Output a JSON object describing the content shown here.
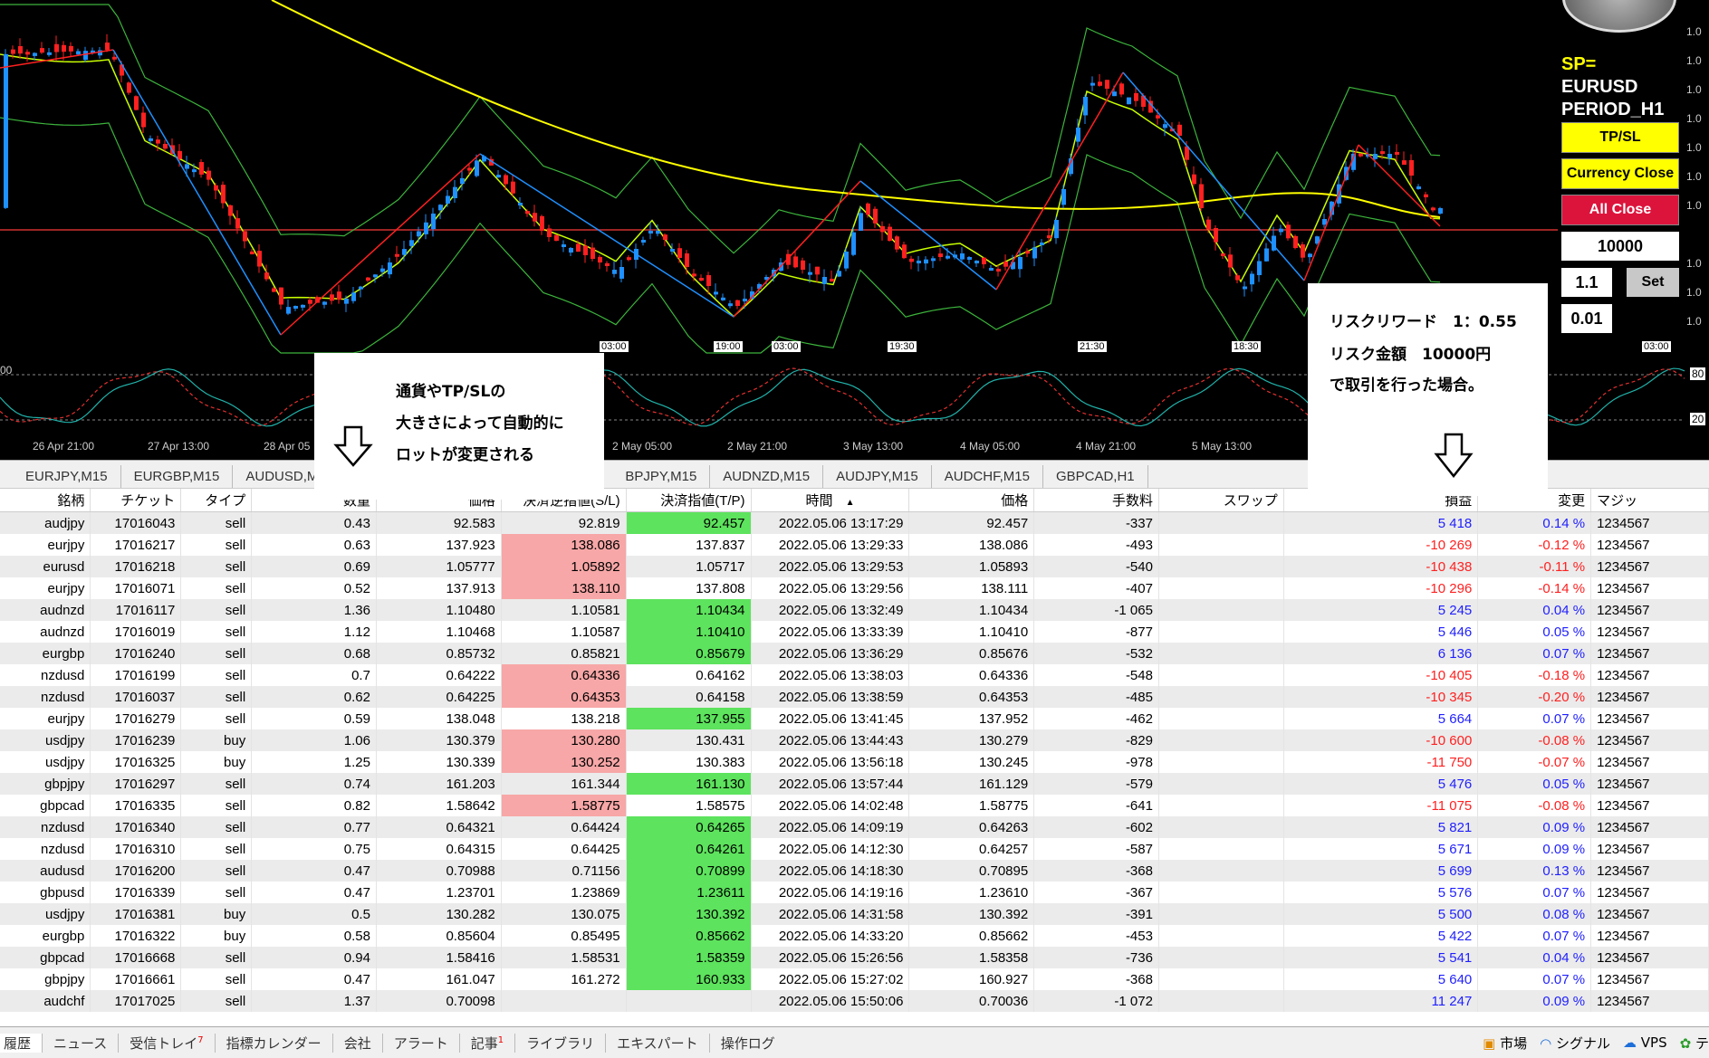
{
  "panel": {
    "sp_label": "SP=",
    "symbol": "EURUSD",
    "period": "PERIOD_H1",
    "tpsl_button": "TP/SL",
    "currency_close_button": "Currency Close",
    "all_close_button": "All Close",
    "amount_value": "10000",
    "ratio_value": "1.1",
    "set_button": "Set",
    "lot_value": "0.01"
  },
  "chart": {
    "time_axis": [
      "26 Apr 21:00",
      "27 Apr 13:00",
      "28 Apr 05",
      "2 May 05:00",
      "2 May 21:00",
      "3 May 13:00",
      "4 May 05:00",
      "4 May 21:00",
      "5 May 13:00"
    ],
    "time_tags": [
      "03:00",
      "19:00",
      "03:00",
      "19:30",
      "21:30",
      "18:30",
      "03:00"
    ],
    "price_axis_label": "1.0",
    "osc_levels": [
      "80",
      "20"
    ],
    "osc_left_label": "00"
  },
  "colors": {
    "bull": "#1e90ff",
    "bear": "#ff2020",
    "tp_green": "#5de35d",
    "sl_pink": "#f7a7a7",
    "positive": "#1f1fff",
    "negative": "#ff2020"
  },
  "notes": {
    "left": [
      "通貨やTP/SLの",
      "大きさによって自動的に",
      "ロットが変更される"
    ],
    "right": [
      "リスクリワード　1：0.55",
      "リスク金額　10000円",
      "で取引を行った場合。"
    ]
  },
  "icons": [
    "down-arrow-icon",
    "sort-arrow-icon",
    "market-icon",
    "signal-icon",
    "vps-icon"
  ],
  "tabs": [
    "EURJPY,M15",
    "EURGBP,M15",
    "AUDUSD,M",
    "BPJPY,M15",
    "AUDNZD,M15",
    "AUDJPY,M15",
    "AUDCHF,M15",
    "GBPCAD,H1"
  ],
  "table": {
    "headers": [
      "銘柄",
      "チケット",
      "タイプ",
      "数量",
      "価格",
      "決済逆指値(S/L)",
      "決済指値(T/P)",
      "時間",
      "価格",
      "手数料",
      "スワップ",
      "損益",
      "変更",
      "マジッ"
    ],
    "rows": [
      [
        "audjpy",
        "17016043",
        "sell",
        "0.43",
        "92.583",
        "92.819",
        "92.457",
        "2022.05.06 13:17:29",
        "92.457",
        "-337",
        "",
        "5 418",
        "0.14 %",
        "1234567",
        "tp"
      ],
      [
        "eurjpy",
        "17016217",
        "sell",
        "0.63",
        "137.923",
        "138.086",
        "137.837",
        "2022.05.06 13:29:33",
        "138.086",
        "-493",
        "",
        "-10 269",
        "-0.12 %",
        "1234567",
        "sl"
      ],
      [
        "eurusd",
        "17016218",
        "sell",
        "0.69",
        "1.05777",
        "1.05892",
        "1.05717",
        "2022.05.06 13:29:53",
        "1.05893",
        "-540",
        "",
        "-10 438",
        "-0.11 %",
        "1234567",
        "sl"
      ],
      [
        "eurjpy",
        "17016071",
        "sell",
        "0.52",
        "137.913",
        "138.110",
        "137.808",
        "2022.05.06 13:29:56",
        "138.111",
        "-407",
        "",
        "-10 296",
        "-0.14 %",
        "1234567",
        "sl"
      ],
      [
        "audnzd",
        "17016117",
        "sell",
        "1.36",
        "1.10480",
        "1.10581",
        "1.10434",
        "2022.05.06 13:32:49",
        "1.10434",
        "-1 065",
        "",
        "5 245",
        "0.04 %",
        "1234567",
        "tp"
      ],
      [
        "audnzd",
        "17016019",
        "sell",
        "1.12",
        "1.10468",
        "1.10587",
        "1.10410",
        "2022.05.06 13:33:39",
        "1.10410",
        "-877",
        "",
        "5 446",
        "0.05 %",
        "1234567",
        "tp"
      ],
      [
        "eurgbp",
        "17016240",
        "sell",
        "0.68",
        "0.85732",
        "0.85821",
        "0.85679",
        "2022.05.06 13:36:29",
        "0.85676",
        "-532",
        "",
        "6 136",
        "0.07 %",
        "1234567",
        "tp"
      ],
      [
        "nzdusd",
        "17016199",
        "sell",
        "0.7",
        "0.64222",
        "0.64336",
        "0.64162",
        "2022.05.06 13:38:03",
        "0.64336",
        "-548",
        "",
        "-10 405",
        "-0.18 %",
        "1234567",
        "sl"
      ],
      [
        "nzdusd",
        "17016037",
        "sell",
        "0.62",
        "0.64225",
        "0.64353",
        "0.64158",
        "2022.05.06 13:38:59",
        "0.64353",
        "-485",
        "",
        "-10 345",
        "-0.20 %",
        "1234567",
        "sl"
      ],
      [
        "eurjpy",
        "17016279",
        "sell",
        "0.59",
        "138.048",
        "138.218",
        "137.955",
        "2022.05.06 13:41:45",
        "137.952",
        "-462",
        "",
        "5 664",
        "0.07 %",
        "1234567",
        "tp"
      ],
      [
        "usdjpy",
        "17016239",
        "buy",
        "1.06",
        "130.379",
        "130.280",
        "130.431",
        "2022.05.06 13:44:43",
        "130.279",
        "-829",
        "",
        "-10 600",
        "-0.08 %",
        "1234567",
        "sl"
      ],
      [
        "usdjpy",
        "17016325",
        "buy",
        "1.25",
        "130.339",
        "130.252",
        "130.383",
        "2022.05.06 13:56:18",
        "130.245",
        "-978",
        "",
        "-11 750",
        "-0.07 %",
        "1234567",
        "sl"
      ],
      [
        "gbpjpy",
        "17016297",
        "sell",
        "0.74",
        "161.203",
        "161.344",
        "161.130",
        "2022.05.06 13:57:44",
        "161.129",
        "-579",
        "",
        "5 476",
        "0.05 %",
        "1234567",
        "tp"
      ],
      [
        "gbpcad",
        "17016335",
        "sell",
        "0.82",
        "1.58642",
        "1.58775",
        "1.58575",
        "2022.05.06 14:02:48",
        "1.58775",
        "-641",
        "",
        "-11 075",
        "-0.08 %",
        "1234567",
        "sl"
      ],
      [
        "nzdusd",
        "17016340",
        "sell",
        "0.77",
        "0.64321",
        "0.64424",
        "0.64265",
        "2022.05.06 14:09:19",
        "0.64263",
        "-602",
        "",
        "5 821",
        "0.09 %",
        "1234567",
        "tp"
      ],
      [
        "nzdusd",
        "17016310",
        "sell",
        "0.75",
        "0.64315",
        "0.64425",
        "0.64261",
        "2022.05.06 14:12:30",
        "0.64257",
        "-587",
        "",
        "5 671",
        "0.09 %",
        "1234567",
        "tp"
      ],
      [
        "audusd",
        "17016200",
        "sell",
        "0.47",
        "0.70988",
        "0.71156",
        "0.70899",
        "2022.05.06 14:18:30",
        "0.70895",
        "-368",
        "",
        "5 699",
        "0.13 %",
        "1234567",
        "tp"
      ],
      [
        "gbpusd",
        "17016339",
        "sell",
        "0.47",
        "1.23701",
        "1.23869",
        "1.23611",
        "2022.05.06 14:19:16",
        "1.23610",
        "-367",
        "",
        "5 576",
        "0.07 %",
        "1234567",
        "tp"
      ],
      [
        "usdjpy",
        "17016381",
        "buy",
        "0.5",
        "130.282",
        "130.075",
        "130.392",
        "2022.05.06 14:31:58",
        "130.392",
        "-391",
        "",
        "5 500",
        "0.08 %",
        "1234567",
        "tp"
      ],
      [
        "eurgbp",
        "17016322",
        "buy",
        "0.58",
        "0.85604",
        "0.85495",
        "0.85662",
        "2022.05.06 14:33:20",
        "0.85662",
        "-453",
        "",
        "5 422",
        "0.07 %",
        "1234567",
        "tp"
      ],
      [
        "gbpcad",
        "17016668",
        "sell",
        "0.94",
        "1.58416",
        "1.58531",
        "1.58359",
        "2022.05.06 15:26:56",
        "1.58358",
        "-736",
        "",
        "5 541",
        "0.04 %",
        "1234567",
        "tp"
      ],
      [
        "gbpjpy",
        "17016661",
        "sell",
        "0.47",
        "161.047",
        "161.272",
        "160.933",
        "2022.05.06 15:27:02",
        "160.927",
        "-368",
        "",
        "5 640",
        "0.07 %",
        "1234567",
        "tp"
      ],
      [
        "audchf",
        "17017025",
        "sell",
        "1.37",
        "0.70098",
        "",
        "",
        "2022.05.06 15:50:06",
        "0.70036",
        "-1 072",
        "",
        "11 247",
        "0.09 %",
        "1234567",
        ""
      ]
    ]
  },
  "statusbar": {
    "tabs": [
      "履歴",
      "ニュース",
      "受信トレイ",
      "指標カレンダー",
      "会社",
      "アラート",
      "記事",
      "ライブラリ",
      "エキスパート",
      "操作ログ"
    ],
    "inbox_count": "7",
    "articles_count": "1",
    "right": [
      "市場",
      "シグナル",
      "VPS",
      "テ"
    ]
  }
}
